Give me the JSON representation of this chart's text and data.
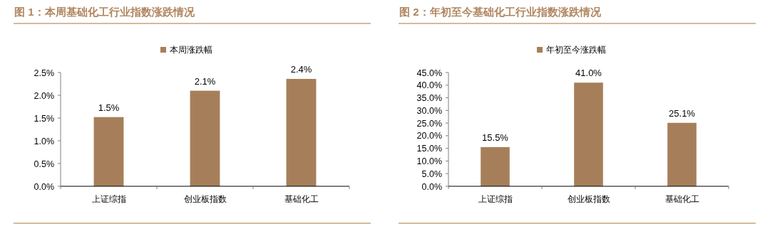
{
  "chart_data": [
    {
      "type": "bar",
      "title": "图 1：本周基础化工行业指数涨跌情况",
      "categories": [
        "上证综指",
        "创业板指数",
        "基础化工"
      ],
      "series": [
        {
          "name": "本周涨跌幅",
          "color": "#a67f5a",
          "values": [
            1.52,
            2.1,
            2.36
          ],
          "value_labels": [
            "1.5%",
            "2.1%",
            "2.4%"
          ]
        }
      ],
      "ylim": [
        0,
        2.5
      ],
      "yticks": [
        {
          "value": 0,
          "label": "0.0%"
        },
        {
          "value": 0.5,
          "label": "0.5%"
        },
        {
          "value": 1,
          "label": "1.0%"
        },
        {
          "value": 1.5,
          "label": "1.5%"
        },
        {
          "value": 2,
          "label": "2.0%"
        },
        {
          "value": 2.5,
          "label": "2.5%"
        }
      ],
      "grid": false,
      "legend": "top"
    },
    {
      "type": "bar",
      "title": "图 2：年初至今基础化工行业指数涨跌情况",
      "categories": [
        "上证综指",
        "创业板指数",
        "基础化工"
      ],
      "series": [
        {
          "name": "年初至今涨跌幅",
          "color": "#a67f5a",
          "values": [
            15.5,
            41.0,
            25.1
          ],
          "value_labels": [
            "15.5%",
            "41.0%",
            "25.1%"
          ]
        }
      ],
      "ylim": [
        0,
        45
      ],
      "yticks": [
        {
          "value": 0,
          "label": "0.0%"
        },
        {
          "value": 5,
          "label": "5.0%"
        },
        {
          "value": 10,
          "label": "10.0%"
        },
        {
          "value": 15,
          "label": "15.0%"
        },
        {
          "value": 20,
          "label": "20.0%"
        },
        {
          "value": 25,
          "label": "25.0%"
        },
        {
          "value": 30,
          "label": "30.0%"
        },
        {
          "value": 35,
          "label": "35.0%"
        },
        {
          "value": 40,
          "label": "40.0%"
        },
        {
          "value": 45,
          "label": "45.0%"
        }
      ],
      "grid": false,
      "legend": "top"
    }
  ]
}
